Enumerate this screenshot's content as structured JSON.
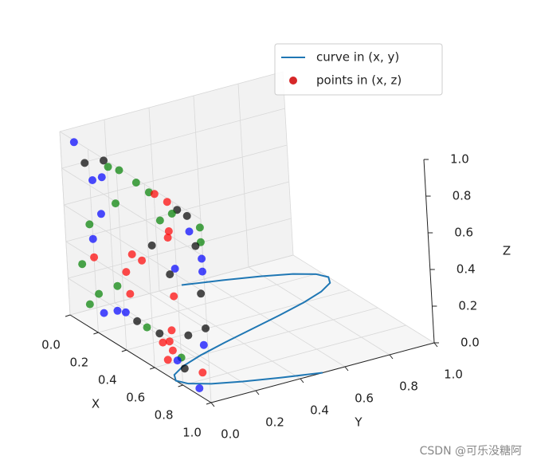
{
  "chart_data": {
    "type": "scatter3d",
    "xlabel": "X",
    "ylabel": "Y",
    "zlabel": "Z",
    "xlim": [
      0,
      1
    ],
    "ylim": [
      0,
      1
    ],
    "zlim": [
      0,
      1
    ],
    "xticks": [
      {
        "value": 0,
        "label": "0.0"
      },
      0.2,
      0.4,
      0.6,
      0.8,
      {
        "value": 1,
        "label": "1.0"
      }
    ],
    "yticks": [
      {
        "value": 0,
        "label": "0.0"
      },
      0.2,
      0.4,
      0.6,
      0.8,
      {
        "value": 1,
        "label": "1.0"
      }
    ],
    "zticks": [
      {
        "value": 0,
        "label": "0.0"
      },
      0.2,
      0.4,
      0.6,
      0.8,
      {
        "value": 1,
        "label": "1.0"
      }
    ],
    "grid": true,
    "legend": "upper right",
    "series": [
      {
        "name": "curve in (x, y)",
        "type": "line",
        "color": "#1f77b4",
        "x": [
          0,
          0.05,
          0.1,
          0.15,
          0.2,
          0.25,
          0.3,
          0.35,
          0.4,
          0.45,
          0.5,
          0.55,
          0.6,
          0.65,
          0.7,
          0.75,
          0.8,
          0.85,
          0.9,
          0.95,
          1
        ],
        "y": [
          0.5,
          0.6545,
          0.7939,
          0.9045,
          0.9755,
          1,
          0.9755,
          0.9045,
          0.7939,
          0.6545,
          0.5,
          0.3455,
          0.2061,
          0.0955,
          0.0245,
          0,
          0.0245,
          0.0955,
          0.2061,
          0.3455,
          0.5
        ]
      },
      {
        "name": "points in (x, z)",
        "type": "scatter",
        "color": "#d62728",
        "x": [
          0.1,
          0.17,
          0.31,
          0.34,
          0.42,
          0.22,
          0.29,
          0.54,
          0.63,
          0.67,
          0.76,
          0.83,
          0.79,
          0.9,
          0.7,
          0.99,
          0.99,
          0.91,
          0.75,
          0.76,
          0.38,
          0.27,
          0.18,
          0.2,
          0.63,
          0.95,
          0.48,
          0.55,
          0.99,
          0.2,
          0.11,
          0.79,
          0.75,
          0.99,
          0.43,
          0.36,
          0.45,
          0.97,
          0.77,
          0.22,
          0.15,
          0.35,
          0.25,
          0.41,
          0.49,
          0.56,
          0.74,
          0.65,
          0.86,
          0.99,
          0.72,
          0.67,
          0.74,
          0.97,
          0.8,
          0.7,
          0.82,
          0.95,
          0.92,
          0.77
        ],
        "z": [
          0.99,
          0.91,
          0.99,
          0.97,
          0.99,
          0.84,
          0.89,
          0.98,
          0.97,
          0.98,
          0.98,
          0.97,
          0.93,
          0.97,
          0.85,
          0.95,
          0.87,
          0.89,
          0.78,
          0.82,
          0.79,
          0.68,
          0.58,
          0.51,
          0.68,
          0.83,
          0.56,
          0.56,
          0.78,
          0.41,
          0.33,
          0.63,
          0.58,
          0.71,
          0.44,
          0.33,
          0.33,
          0.58,
          0.47,
          0.22,
          0.13,
          0.19,
          0.13,
          0.21,
          0.2,
          0.2,
          0.27,
          0.21,
          0.3,
          0.4,
          0.2,
          0.17,
          0.16,
          0.3,
          0.15,
          0.09,
          0.1,
          0.14,
          0.04,
          0.12
        ],
        "colors": [
          "#0000ff",
          "#000000",
          "#000000",
          "#008000",
          "#008000",
          "#0000ff",
          "#0000ff",
          "#008000",
          "#008000",
          "#ff0000",
          "#ff0000",
          "#000000",
          "#008000",
          "#000000",
          "#008000",
          "#008000",
          "#008000",
          "#0000ff",
          "#ff0000",
          "#ff0000",
          "#008000",
          "#0000ff",
          "#008000",
          "#0000ff",
          "#000000",
          "#000000",
          "#ff0000",
          "#ff0000",
          "#0000ff",
          "#ff0000",
          "#008000",
          "#0000ff",
          "#000000",
          "#0000ff",
          "#ff0000",
          "#008000",
          "#ff0000",
          "#000000",
          "#ff0000",
          "#008000",
          "#008000",
          "#0000ff",
          "#0000ff",
          "#0000ff",
          "#000000",
          "#008000",
          "#ff0000",
          "#000000",
          "#000000",
          "#000000",
          "#ff0000",
          "#ff0000",
          "#ff0000",
          "#0000ff",
          "#008000",
          "#ff0000",
          "#000000",
          "#ff0000",
          "#0000ff",
          "#0000ff"
        ]
      }
    ]
  },
  "watermark": "CSDN @可乐没糖阿"
}
